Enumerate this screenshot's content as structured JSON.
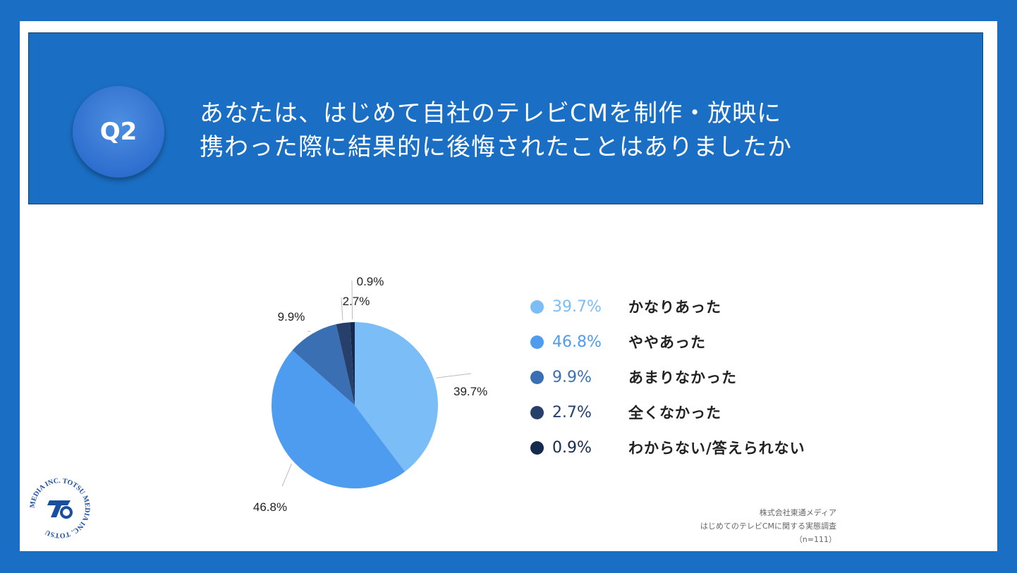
{
  "question": {
    "badge": "Q2",
    "line1": "あなたは、はじめて自社のテレビCMを制作・放映に",
    "line2": "携わった際に結果的に後悔されたことはありましたか"
  },
  "chart_data": {
    "type": "pie",
    "title": "",
    "categories": [
      "かなりあった",
      "ややあった",
      "あまりなかった",
      "全くなかった",
      "わからない/答えられない"
    ],
    "values": [
      39.7,
      46.8,
      9.9,
      2.7,
      0.9
    ],
    "labels": [
      "39.7%",
      "46.8%",
      "9.9%",
      "2.7%",
      "0.9%"
    ],
    "colors": [
      "#7bbdf7",
      "#4e9cef",
      "#3a70b3",
      "#263f6b",
      "#152a4d"
    ],
    "legend_text_colors": [
      "#7bbdf7",
      "#4e9cef",
      "#3a70b3",
      "#263f6b",
      "#152a4d"
    ],
    "legend_position": "right"
  },
  "source": {
    "line1": "株式会社東通メディア",
    "line2": "はじめてのテレビCMに関する実態調査",
    "line3": "（n=111）"
  },
  "logo": {
    "text": "MEDIA INC. TOTSU MEDIA INC. TOTSU"
  }
}
